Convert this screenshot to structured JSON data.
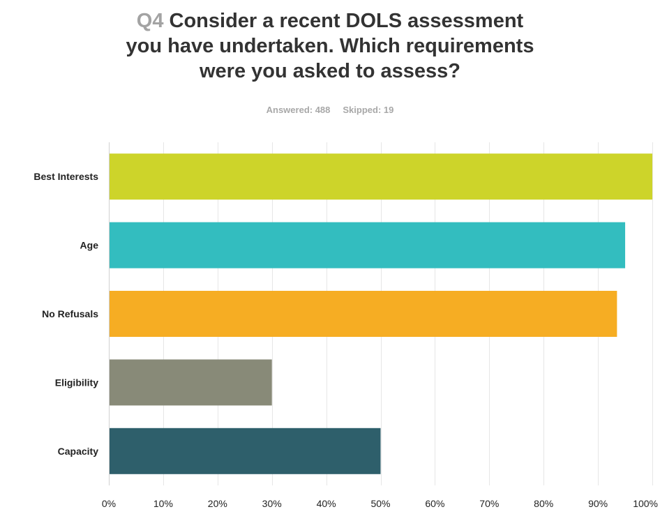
{
  "header": {
    "qnum": "Q4",
    "title_lines": [
      "Consider a recent DOLS assessment",
      "you have undertaken. Which requirements",
      "were you asked to assess?"
    ],
    "answered_label": "Answered: 488",
    "skipped_label": "Skipped: 19"
  },
  "chart_data": {
    "type": "bar",
    "orientation": "horizontal",
    "categories": [
      "Best Interests",
      "Age",
      "No Refusals",
      "Eligibility",
      "Capacity"
    ],
    "values": [
      100,
      95,
      93.5,
      30,
      50
    ],
    "value_unit": "%",
    "xlim": [
      0,
      100
    ],
    "x_ticks": [
      "0%",
      "10%",
      "20%",
      "30%",
      "40%",
      "50%",
      "60%",
      "70%",
      "80%",
      "90%",
      "100%"
    ],
    "colors": [
      "#cdd42a",
      "#33bdbf",
      "#f6ad23",
      "#888a78",
      "#2e5f6b"
    ],
    "grid": true
  }
}
